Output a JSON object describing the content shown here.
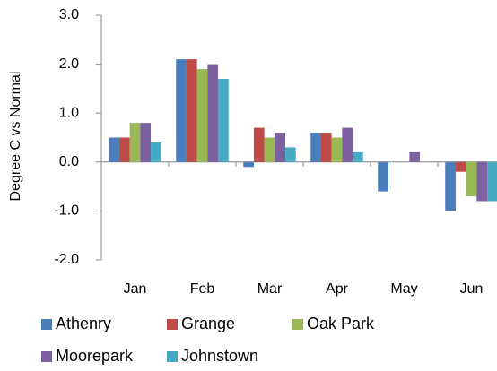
{
  "chart_data": {
    "type": "bar",
    "y_label": "Degree C vs Normal",
    "categories": [
      "Jan",
      "Feb",
      "Mar",
      "Apr",
      "May",
      "Jun"
    ],
    "series": [
      {
        "name": "Athenry",
        "color": "#4a7ebb",
        "values": [
          0.5,
          2.1,
          -0.1,
          0.6,
          -0.6,
          -1.0
        ]
      },
      {
        "name": "Grange",
        "color": "#be4b48",
        "values": [
          0.5,
          2.1,
          0.7,
          0.6,
          0,
          -0.2
        ]
      },
      {
        "name": "Oak Park",
        "color": "#98b954",
        "values": [
          0.8,
          1.9,
          0.5,
          0.5,
          0,
          -0.7
        ]
      },
      {
        "name": "Moorepark",
        "color": "#7d60a0",
        "values": [
          0.8,
          2.0,
          0.6,
          0.7,
          0.2,
          -0.8
        ]
      },
      {
        "name": "Johnstown",
        "color": "#46aac5",
        "values": [
          0.4,
          1.7,
          0.3,
          0.2,
          0,
          -0.8
        ]
      }
    ],
    "ylim": [
      -2,
      3
    ],
    "yticks": [
      {
        "value": 3,
        "label": "3.0"
      },
      {
        "value": 2,
        "label": "2.0"
      },
      {
        "value": 1,
        "label": "1.0"
      },
      {
        "value": 0,
        "label": "0.0"
      },
      {
        "value": -1,
        "label": "-1.0"
      },
      {
        "value": -2,
        "label": "-2.0"
      }
    ]
  }
}
